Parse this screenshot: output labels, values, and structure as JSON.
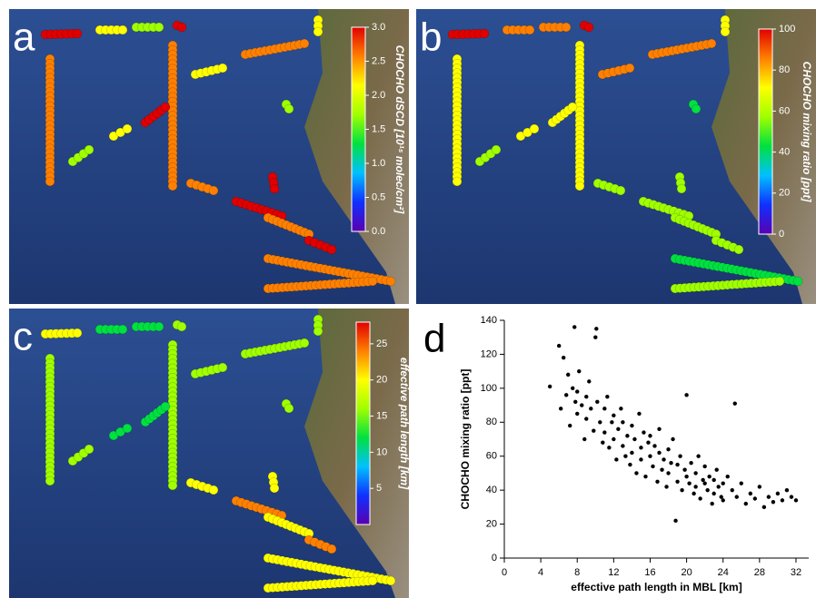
{
  "chart_data": [
    {
      "type": "map",
      "panel_label": "a",
      "colorbar": {
        "label": "CHOCHO dSCD [10¹⁵ molec/cm²]",
        "lim": [
          0,
          3
        ],
        "ticks": [
          {
            "value": 0,
            "label": "0.0"
          },
          0.5,
          {
            "value": 1,
            "label": "1.0"
          },
          1.5,
          {
            "value": 2,
            "label": "2.0"
          },
          2.5,
          {
            "value": 3,
            "label": "3.0"
          }
        ],
        "colors": [
          "#5a00b0",
          "#1030ff",
          "#00c0ff",
          "#00e040",
          "#a0ff00",
          "#ffff00",
          "#ff8000",
          "#e00000"
        ]
      }
    },
    {
      "type": "map",
      "panel_label": "b",
      "colorbar": {
        "label": "CHOCHO mixing ratio [ppt]",
        "lim": [
          0,
          100
        ],
        "ticks": [
          0,
          20,
          40,
          60,
          80,
          100
        ],
        "colors": [
          "#5a00b0",
          "#1030ff",
          "#00c0ff",
          "#00e040",
          "#a0ff00",
          "#ffff00",
          "#ff8000",
          "#e00000"
        ]
      }
    },
    {
      "type": "map",
      "panel_label": "c",
      "colorbar": {
        "label": "effective path length [km]",
        "lim": [
          0,
          28
        ],
        "ticks": [
          5,
          10,
          15,
          20,
          25
        ],
        "colors": [
          "#5a00b0",
          "#1030ff",
          "#00c0ff",
          "#00e040",
          "#a0ff00",
          "#ffff00",
          "#ff8000",
          "#e00000"
        ]
      }
    },
    {
      "type": "scatter",
      "panel_label": "d",
      "x_label": "effective path length in MBL [km]",
      "y_label": "CHOCHO mixing ratio [ppt]",
      "color": "#000000",
      "xlim": [
        0,
        33.4
      ],
      "ylim": [
        0,
        140
      ],
      "xticks": [
        0,
        4,
        8,
        12,
        16,
        20,
        24,
        28,
        32
      ],
      "yticks": [
        0,
        20,
        40,
        60,
        80,
        100,
        120,
        140
      ],
      "x": [
        5,
        6,
        6.2,
        6.5,
        6.8,
        7,
        7.2,
        7.5,
        7.7,
        7.8,
        8,
        8,
        8.2,
        8.5,
        8.8,
        9,
        9,
        9.3,
        9.5,
        9.8,
        10,
        10.1,
        10.2,
        10.5,
        10.8,
        11,
        11,
        11.3,
        11.5,
        11.8,
        12,
        12,
        12.3,
        12.5,
        12.8,
        13,
        13,
        13.3,
        13.5,
        13.8,
        14,
        14,
        14.3,
        14.5,
        14.8,
        15,
        15,
        15.3,
        15.5,
        15.8,
        16,
        16,
        16.3,
        16.5,
        16.8,
        17,
        17,
        17.3,
        17.5,
        17.8,
        18,
        18,
        18.3,
        18.5,
        18.8,
        19,
        19,
        19.3,
        19.5,
        19.8,
        20,
        20,
        20.3,
        20.5,
        20.8,
        21,
        21,
        21.3,
        21.5,
        21.8,
        22,
        22,
        22.3,
        22.5,
        22.8,
        23,
        23,
        23.3,
        23.5,
        23.8,
        24,
        24,
        24.5,
        25,
        25.3,
        25.5,
        26,
        26.5,
        27,
        27.5,
        28,
        28.5,
        29,
        29.5,
        30,
        30.5,
        31,
        31.5,
        32
      ],
      "values": [
        101,
        125,
        88,
        118,
        96,
        108,
        78,
        100,
        136,
        92,
        98,
        85,
        110,
        90,
        70,
        95,
        82,
        104,
        88,
        75,
        130,
        135,
        92,
        80,
        68,
        88,
        74,
        95,
        65,
        80,
        84,
        70,
        58,
        76,
        88,
        66,
        80,
        60,
        72,
        55,
        78,
        62,
        70,
        50,
        85,
        65,
        58,
        74,
        48,
        68,
        60,
        72,
        54,
        66,
        45,
        62,
        76,
        52,
        58,
        42,
        64,
        50,
        56,
        70,
        22,
        55,
        45,
        60,
        40,
        52,
        48,
        96,
        44,
        56,
        38,
        50,
        42,
        60,
        35,
        46,
        44,
        54,
        40,
        48,
        32,
        46,
        38,
        52,
        42,
        36,
        44,
        34,
        48,
        40,
        91,
        36,
        44,
        32,
        38,
        35,
        42,
        30,
        36,
        33,
        38,
        34,
        40,
        36,
        34
      ]
    }
  ]
}
